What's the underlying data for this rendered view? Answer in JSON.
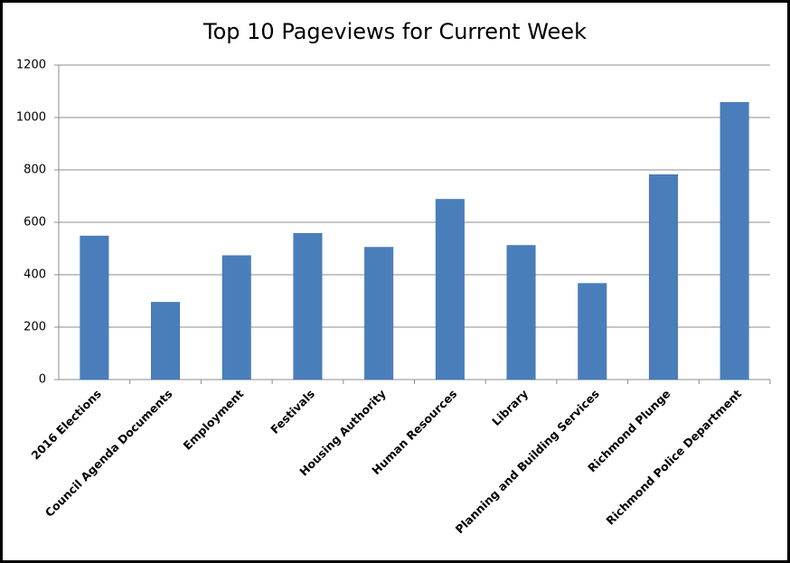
{
  "chart_data": {
    "type": "bar",
    "title": "Top 10 Pageviews for Current Week",
    "categories": [
      "2016 Elections",
      "Council Agenda Documents",
      "Employment",
      "Festivals",
      "Housing Authority",
      "Human Resources",
      "Library",
      "Planning and Building Services",
      "Richmond Plunge",
      "Richmond Police Department"
    ],
    "values": [
      548,
      295,
      473,
      558,
      505,
      688,
      512,
      367,
      782,
      1058
    ],
    "color": "#4a7ebb",
    "ylim": [
      0,
      1200
    ],
    "yticks": [
      0,
      200,
      400,
      600,
      800,
      1000,
      1200
    ],
    "grid": true
  }
}
